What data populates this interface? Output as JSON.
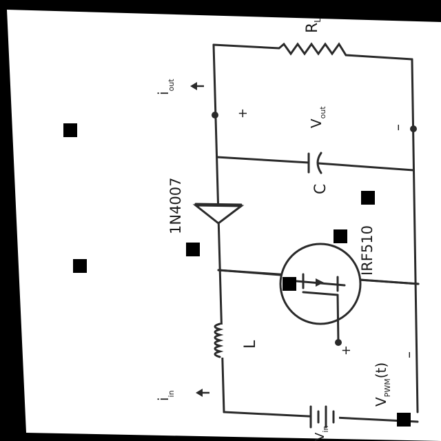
{
  "diagram": {
    "title": "",
    "colors": {
      "paper": "#ffffff",
      "frame": "#000000",
      "ink": "#2a2a2a",
      "marker": "#000000"
    },
    "components": {
      "load_resistor": {
        "label": "R",
        "sub": "L"
      },
      "output_current": {
        "label": "i",
        "sub": "out"
      },
      "output_voltage": {
        "label": "V",
        "sub": "out",
        "plus": "+",
        "minus": "–"
      },
      "capacitor": {
        "label": "C"
      },
      "diode": {
        "label": "1N4007"
      },
      "mosfet": {
        "label": "IRF510"
      },
      "inductor": {
        "label": "L"
      },
      "input_current": {
        "label": "i",
        "sub": "in"
      },
      "pwm_source": {
        "label": "V",
        "sub": "PWM",
        "suffix": "(t)",
        "plus": "+",
        "minus": "–"
      },
      "input_source": {
        "label": "V",
        "sub": "in"
      }
    },
    "arrow_glyph": "↑"
  }
}
